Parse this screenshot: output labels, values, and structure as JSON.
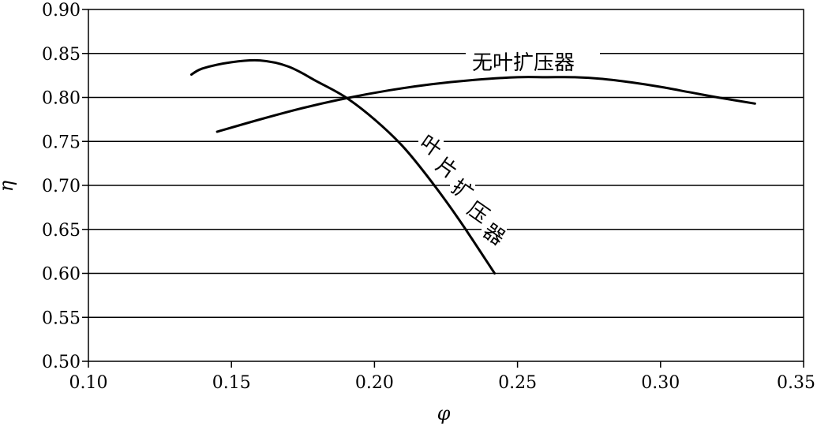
{
  "chart_data": {
    "type": "line",
    "xlabel": "φ",
    "ylabel": "η",
    "xlim": [
      0.1,
      0.35
    ],
    "ylim": [
      0.5,
      0.9
    ],
    "xticks": [
      "0.10",
      "0.15",
      "0.20",
      "0.25",
      "0.30",
      "0.35"
    ],
    "xtick_values": [
      0.1,
      0.15,
      0.2,
      0.25,
      0.3,
      0.35
    ],
    "yticks": [
      "0.50",
      "0.55",
      "0.60",
      "0.65",
      "0.70",
      "0.75",
      "0.80",
      "0.85",
      "0.90"
    ],
    "ytick_values": [
      0.5,
      0.55,
      0.6,
      0.65,
      0.7,
      0.75,
      0.8,
      0.85,
      0.9
    ],
    "grid": "horizontal",
    "series": [
      {
        "name": "无叶扩压器",
        "x": [
          0.145,
          0.16,
          0.175,
          0.19,
          0.205,
          0.22,
          0.235,
          0.25,
          0.26,
          0.27,
          0.28,
          0.29,
          0.3,
          0.31,
          0.32,
          0.333
        ],
        "y": [
          0.761,
          0.775,
          0.788,
          0.799,
          0.808,
          0.815,
          0.82,
          0.823,
          0.823,
          0.823,
          0.821,
          0.817,
          0.812,
          0.806,
          0.8,
          0.793
        ]
      },
      {
        "name": "叶片扩压器",
        "x": [
          0.136,
          0.14,
          0.15,
          0.16,
          0.17,
          0.18,
          0.19,
          0.2,
          0.21,
          0.22,
          0.23,
          0.242
        ],
        "y": [
          0.826,
          0.833,
          0.84,
          0.842,
          0.835,
          0.818,
          0.8,
          0.775,
          0.744,
          0.704,
          0.659,
          0.6
        ]
      }
    ]
  }
}
